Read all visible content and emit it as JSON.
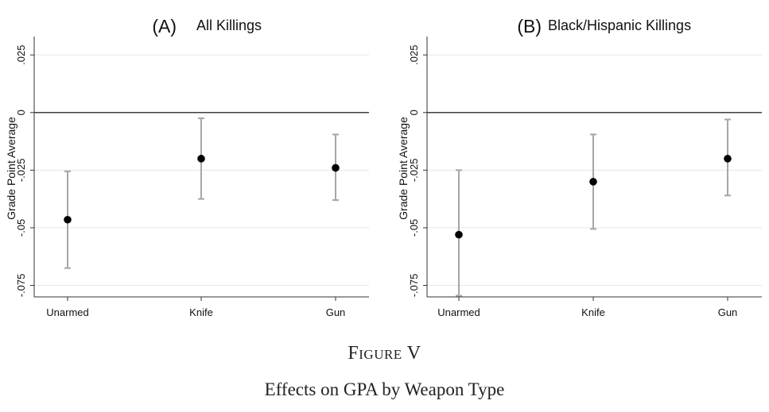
{
  "figure": {
    "label": "Figure V",
    "caption": "Effects on GPA by Weapon Type"
  },
  "colors": {
    "point": "#000000",
    "errorbar": "#a6a6a6",
    "gridline": "#e6e6e6",
    "zeroline": "#000000",
    "axis": "#333333"
  },
  "chart_data": [
    {
      "type": "scatter",
      "title_tag": "(A)",
      "title": "All Killings",
      "ylabel": "Grade Point Average",
      "xlabel": "",
      "categories": [
        "Unarmed",
        "Knife",
        "Gun"
      ],
      "ylim": [
        -0.08,
        0.033
      ],
      "yticks": [
        0.025,
        0,
        -0.025,
        -0.05,
        -0.075
      ],
      "ytick_labels": [
        ".025",
        "0",
        "-.025",
        "-.05",
        "-.075"
      ],
      "grid": true,
      "reference_line": 0,
      "series": [
        {
          "values": [
            -0.0465,
            -0.02,
            -0.024
          ],
          "ci_low": [
            -0.0675,
            -0.0375,
            -0.038
          ],
          "ci_high": [
            -0.0255,
            -0.0025,
            -0.0095
          ]
        }
      ]
    },
    {
      "type": "scatter",
      "title_tag": "(B)",
      "title": "Black/Hispanic Killings",
      "ylabel": "Grade Point Average",
      "xlabel": "",
      "categories": [
        "Unarmed",
        "Knife",
        "Gun"
      ],
      "ylim": [
        -0.08,
        0.033
      ],
      "yticks": [
        0.025,
        0,
        -0.025,
        -0.05,
        -0.075
      ],
      "ytick_labels": [
        ".025",
        "0",
        "-.025",
        "-.05",
        "-.075"
      ],
      "grid": true,
      "reference_line": 0,
      "series": [
        {
          "values": [
            -0.053,
            -0.03,
            -0.02
          ],
          "ci_low": [
            -0.0795,
            -0.0505,
            -0.036
          ],
          "ci_high": [
            -0.025,
            -0.0095,
            -0.003
          ]
        }
      ]
    }
  ]
}
